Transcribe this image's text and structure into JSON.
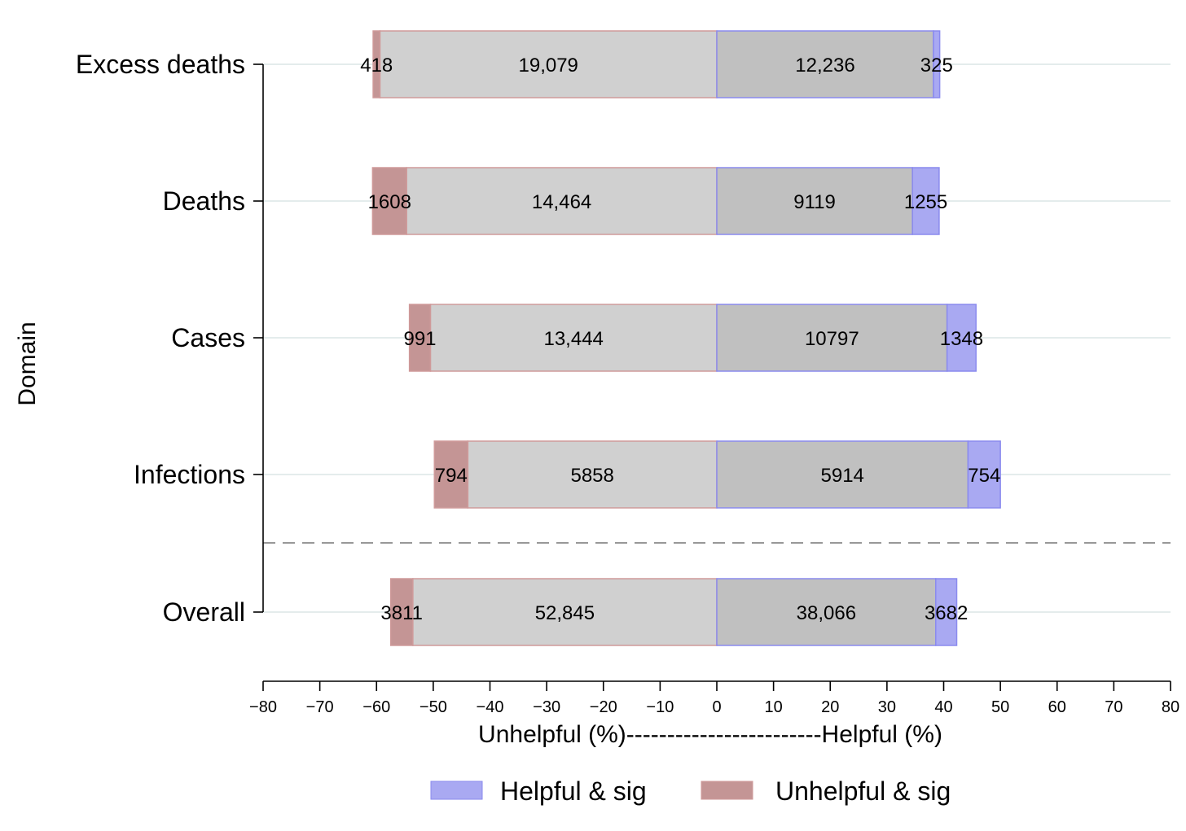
{
  "chart_data": {
    "type": "bar",
    "orientation": "horizontal-diverging",
    "ylabel": "Domain",
    "xlabel": "Unhelpful (%)------------------------Helpful (%)",
    "xlim": [
      -80,
      80
    ],
    "xticks": [
      -80,
      -70,
      -60,
      -50,
      -40,
      -30,
      -20,
      -10,
      0,
      10,
      20,
      30,
      40,
      50,
      60,
      70,
      80
    ],
    "xtick_labels": [
      "−80",
      "−70",
      "−60",
      "−50",
      "−40",
      "−30",
      "−20",
      "−10",
      "0",
      "10",
      "20",
      "30",
      "40",
      "50",
      "60",
      "70",
      "80"
    ],
    "categories": [
      "Excess deaths",
      "Deaths",
      "Cases",
      "Infections",
      "Overall"
    ],
    "separator_after_category": "Infections",
    "rows": [
      {
        "category": "Excess deaths",
        "unhelpful_sig_pct": 1.2,
        "unhelpful_nonsig_pct": 59.4,
        "helpful_nonsig_pct": 38.2,
        "helpful_sig_pct": 1.1,
        "unhelpful_sig_n": "418",
        "unhelpful_nonsig_n": "19,079",
        "helpful_nonsig_n": "12,236",
        "helpful_sig_n": "325"
      },
      {
        "category": "Deaths",
        "unhelpful_sig_pct": 6.0,
        "unhelpful_nonsig_pct": 54.7,
        "helpful_nonsig_pct": 34.5,
        "helpful_sig_pct": 4.7,
        "unhelpful_sig_n": "1608",
        "unhelpful_nonsig_n": "14,464",
        "helpful_nonsig_n": "9119",
        "helpful_sig_n": "1255"
      },
      {
        "category": "Cases",
        "unhelpful_sig_pct": 3.7,
        "unhelpful_nonsig_pct": 50.5,
        "helpful_nonsig_pct": 40.6,
        "helpful_sig_pct": 5.1,
        "unhelpful_sig_n": "991",
        "unhelpful_nonsig_n": "13,444",
        "helpful_nonsig_n": "10797",
        "helpful_sig_n": "1348"
      },
      {
        "category": "Infections",
        "unhelpful_sig_pct": 5.9,
        "unhelpful_nonsig_pct": 43.9,
        "helpful_nonsig_pct": 44.3,
        "helpful_sig_pct": 5.7,
        "unhelpful_sig_n": "794",
        "unhelpful_nonsig_n": "5858",
        "helpful_nonsig_n": "5914",
        "helpful_sig_n": "754"
      },
      {
        "category": "Overall",
        "unhelpful_sig_pct": 3.9,
        "unhelpful_nonsig_pct": 53.6,
        "helpful_nonsig_pct": 38.6,
        "helpful_sig_pct": 3.7,
        "unhelpful_sig_n": "3811",
        "unhelpful_nonsig_n": "52,845",
        "helpful_nonsig_n": "38,066",
        "helpful_sig_n": "3682"
      }
    ],
    "legend": {
      "position": "bottom",
      "items": [
        {
          "label": "Helpful & sig",
          "color": "#a9a9f2"
        },
        {
          "label": "Unhelpful & sig",
          "color": "#c49595"
        }
      ]
    },
    "colors": {
      "unhelpful_nonsig": "#d0d0d0",
      "helpful_nonsig": "#c0c0c0",
      "unhelpful_edge": "#cf9a9a",
      "helpful_edge": "#8a8aee",
      "gridline": "#e4ecec"
    }
  }
}
